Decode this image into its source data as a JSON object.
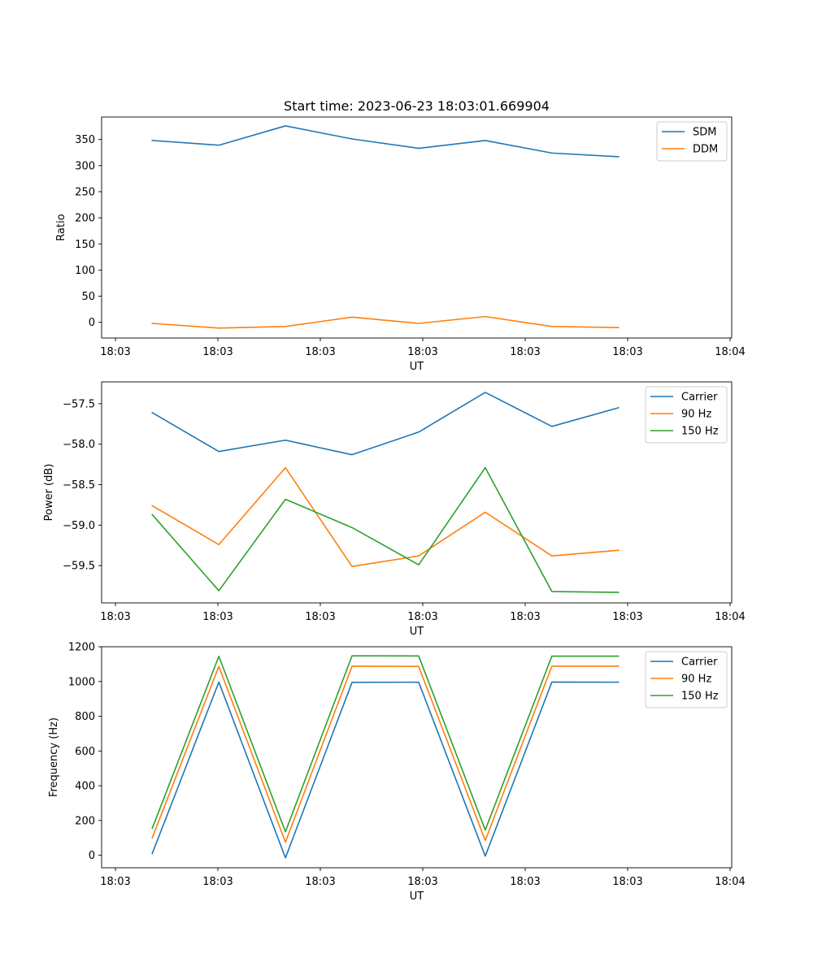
{
  "chart_data": [
    {
      "type": "line",
      "title": "Start time: 2023-06-23 18:03:01.669904",
      "xlabel": "UT",
      "ylabel": "Ratio",
      "x_tick_labels": [
        "18:03",
        "18:03",
        "18:03",
        "18:03",
        "18:03",
        "18:03",
        "18:04"
      ],
      "y_ticks": [
        0,
        50,
        100,
        150,
        200,
        250,
        300,
        350
      ],
      "ylim": [
        -30,
        393
      ],
      "x": [
        1,
        2,
        3,
        4,
        5,
        6,
        7,
        8
      ],
      "xlim": [
        0.24,
        9.7
      ],
      "legend_position": "top-right",
      "series": [
        {
          "name": "SDM",
          "color": "#1f77b4",
          "values": [
            348,
            339,
            376,
            351,
            333,
            348,
            324,
            317
          ]
        },
        {
          "name": "DDM",
          "color": "#ff7f0e",
          "values": [
            -2,
            -11,
            -8,
            10,
            -2,
            11,
            -8,
            -10
          ]
        }
      ]
    },
    {
      "type": "line",
      "title": "",
      "xlabel": "UT",
      "ylabel": "Power (dB)",
      "x_tick_labels": [
        "18:03",
        "18:03",
        "18:03",
        "18:03",
        "18:03",
        "18:03",
        "18:04"
      ],
      "y_ticks": [
        -59.5,
        -59.0,
        -58.5,
        -58.0,
        -57.5
      ],
      "y_tick_labels": [
        "−59.5",
        "−59.0",
        "−58.5",
        "−58.0",
        "−57.5"
      ],
      "ylim": [
        -59.96,
        -57.23
      ],
      "x": [
        1,
        2,
        3,
        4,
        5,
        6,
        7,
        8
      ],
      "xlim": [
        0.24,
        9.7
      ],
      "legend_position": "top-right",
      "series": [
        {
          "name": "Carrier",
          "color": "#1f77b4",
          "values": [
            -57.61,
            -58.09,
            -57.95,
            -58.13,
            -57.85,
            -57.36,
            -57.78,
            -57.55
          ]
        },
        {
          "name": "90 Hz",
          "color": "#ff7f0e",
          "values": [
            -58.76,
            -59.24,
            -58.29,
            -59.51,
            -59.38,
            -58.84,
            -59.38,
            -59.31
          ]
        },
        {
          "name": "150 Hz",
          "color": "#2ca02c",
          "values": [
            -58.87,
            -59.81,
            -58.68,
            -59.03,
            -59.49,
            -58.29,
            -59.82,
            -59.83
          ]
        }
      ]
    },
    {
      "type": "line",
      "title": "",
      "xlabel": "UT",
      "ylabel": "Frequency (Hz)",
      "x_tick_labels": [
        "18:03",
        "18:03",
        "18:03",
        "18:03",
        "18:03",
        "18:03",
        "18:04"
      ],
      "y_ticks": [
        0,
        200,
        400,
        600,
        800,
        1000,
        1200
      ],
      "ylim": [
        -72,
        1200
      ],
      "x": [
        1,
        2,
        3,
        4,
        5,
        6,
        7,
        8
      ],
      "xlim": [
        0.24,
        9.7
      ],
      "legend_position": "top-right",
      "series": [
        {
          "name": "Carrier",
          "color": "#1f77b4",
          "values": [
            10,
            997,
            -15,
            995,
            996,
            -5,
            997,
            996
          ]
        },
        {
          "name": "90 Hz",
          "color": "#ff7f0e",
          "values": [
            100,
            1087,
            75,
            1088,
            1087,
            85,
            1088,
            1088
          ]
        },
        {
          "name": "150 Hz",
          "color": "#2ca02c",
          "values": [
            155,
            1145,
            135,
            1148,
            1147,
            145,
            1146,
            1146
          ]
        }
      ]
    }
  ]
}
